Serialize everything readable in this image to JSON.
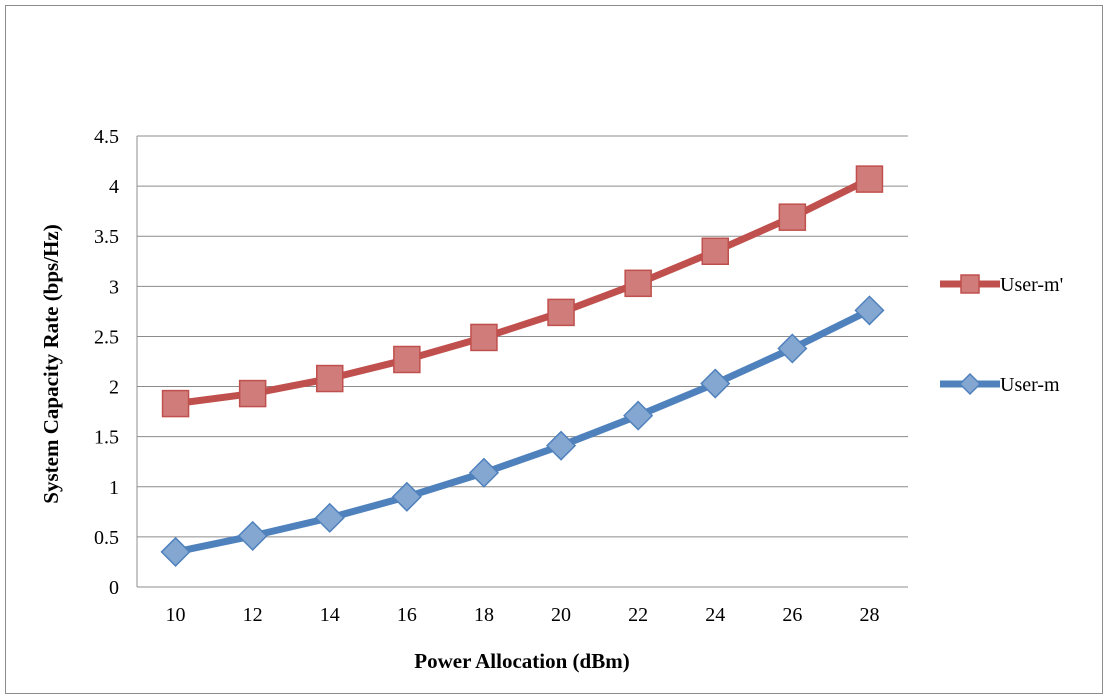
{
  "chart_data": {
    "type": "line",
    "title": "",
    "xlabel": "Power Allocation (dBm)",
    "ylabel": "System Capacity Rate (bps/Hz)",
    "categories": [
      "10",
      "12",
      "14",
      "16",
      "18",
      "20",
      "22",
      "24",
      "26",
      "28"
    ],
    "ylim": [
      0,
      4.5
    ],
    "yticks": [
      "0",
      "0.5",
      "1",
      "1.5",
      "2",
      "2.5",
      "3",
      "3.5",
      "4",
      "4.5"
    ],
    "grid": "horizontal",
    "legend_position": "right",
    "series": [
      {
        "name": "User-m'",
        "color": "#c0504d",
        "marker": "square",
        "values": [
          1.83,
          1.93,
          2.08,
          2.27,
          2.49,
          2.74,
          3.03,
          3.35,
          3.69,
          4.07
        ]
      },
      {
        "name": "User-m",
        "color": "#4f81bd",
        "marker": "diamond",
        "values": [
          0.35,
          0.51,
          0.69,
          0.9,
          1.14,
          1.41,
          1.71,
          2.03,
          2.38,
          2.76
        ]
      }
    ]
  }
}
